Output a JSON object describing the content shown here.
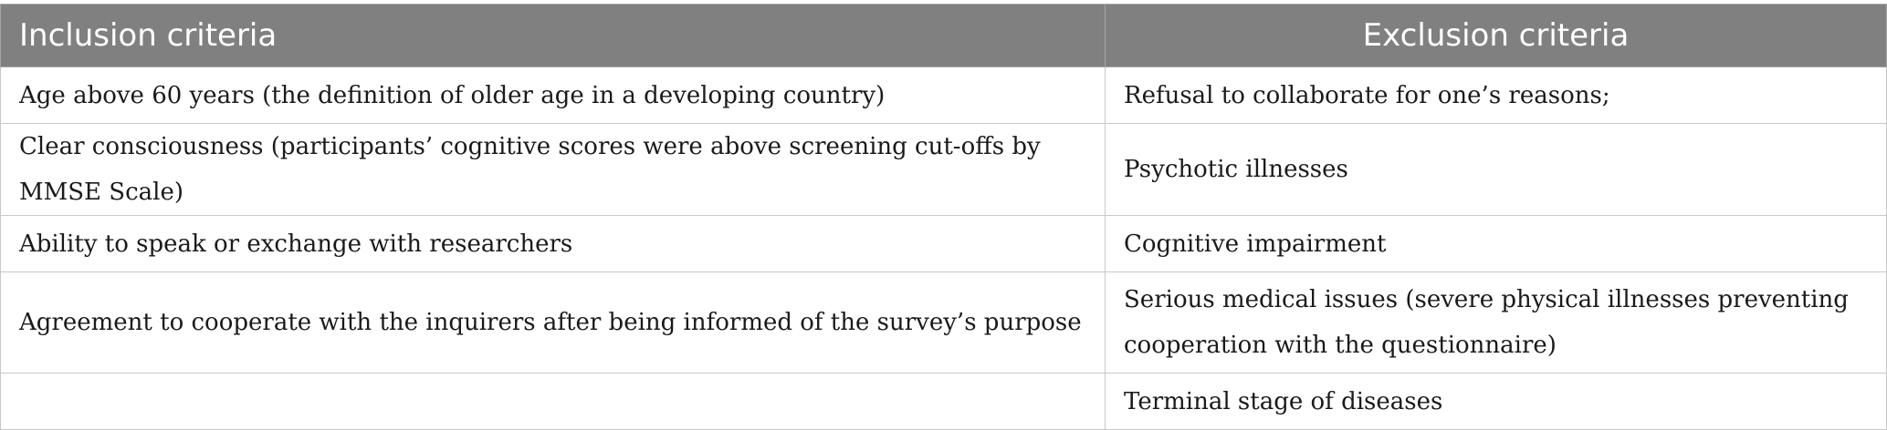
{
  "table": {
    "headers": {
      "inclusion": "Inclusion criteria",
      "exclusion": "Exclusion criteria"
    },
    "rows": [
      {
        "inclusion": "Age above 60 years (the definition of older age in a developing country)",
        "exclusion": "Refusal to collaborate for one’s reasons;"
      },
      {
        "inclusion": "Clear consciousness (participants’ cognitive scores were above screening cut-offs by MMSE Scale)",
        "exclusion": "Psychotic illnesses"
      },
      {
        "inclusion": "Ability to speak or exchange with researchers",
        "exclusion": "Cognitive impairment"
      },
      {
        "inclusion": "Agreement to cooperate with the inquirers after being informed of the survey’s purpose",
        "exclusion": "Serious medical issues (severe physical illnesses preventing cooperation with the questionnaire)"
      },
      {
        "inclusion": "",
        "exclusion": "Terminal stage of diseases"
      }
    ]
  }
}
